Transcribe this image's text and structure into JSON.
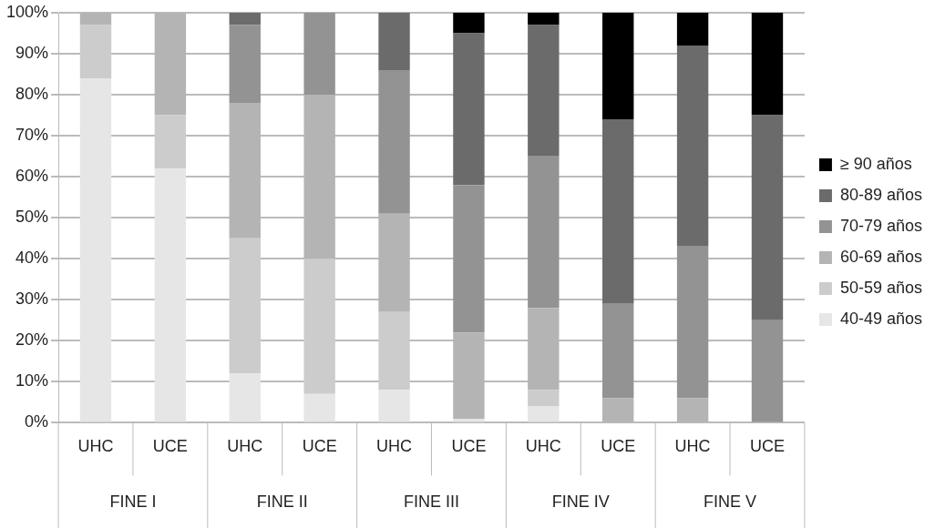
{
  "chart_data": {
    "type": "bar",
    "stacked": true,
    "categories": [
      "UHC",
      "UCE",
      "UHC",
      "UCE",
      "UHC",
      "UCE",
      "UHC",
      "UCE",
      "UHC",
      "UCE"
    ],
    "series": [
      {
        "name": "40-49 años",
        "color": "#e6e6e6",
        "values": [
          84,
          62,
          12,
          7,
          8,
          1,
          4,
          0,
          0,
          0
        ]
      },
      {
        "name": "50-59 años",
        "color": "#cccccc",
        "values": [
          13,
          13,
          33,
          33,
          19,
          0,
          4,
          0,
          0,
          0
        ]
      },
      {
        "name": "60-69 años",
        "color": "#b4b4b4",
        "values": [
          3,
          25,
          33,
          40,
          24,
          21,
          20,
          6,
          6,
          0
        ]
      },
      {
        "name": "70-79 años",
        "color": "#939393",
        "values": [
          0,
          0,
          19,
          20,
          35,
          36,
          37,
          23,
          37,
          25
        ]
      },
      {
        "name": "80-89 años",
        "color": "#6b6b6b",
        "values": [
          0,
          0,
          3,
          0,
          14,
          37,
          32,
          45,
          49,
          50
        ]
      },
      {
        "name": "≥ 90 años",
        "color": "#000000",
        "values": [
          0,
          0,
          0,
          0,
          0,
          5,
          3,
          26,
          8,
          25
        ]
      }
    ],
    "ylim": [
      0,
      100
    ],
    "yticks": [
      {
        "value": 0,
        "label": "0%"
      },
      {
        "value": 10,
        "label": "10%"
      },
      {
        "value": 20,
        "label": "20%"
      },
      {
        "value": 30,
        "label": "30%"
      },
      {
        "value": 40,
        "label": "40%"
      },
      {
        "value": 50,
        "label": "50%"
      },
      {
        "value": 60,
        "label": "60%"
      },
      {
        "value": 70,
        "label": "70%"
      },
      {
        "value": 80,
        "label": "80%"
      },
      {
        "value": 90,
        "label": "90%"
      },
      {
        "value": 100,
        "label": "100%"
      }
    ],
    "grid": "y",
    "legend": "right",
    "annotations": [
      "FINE I",
      "FINE II",
      "FINE III",
      "FINE IV",
      "FINE V"
    ]
  }
}
